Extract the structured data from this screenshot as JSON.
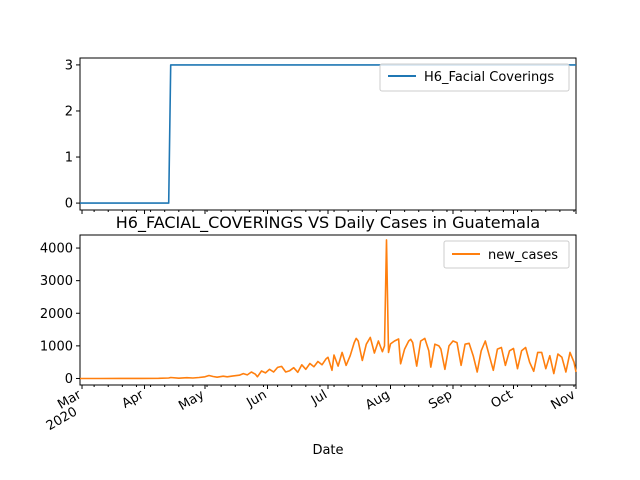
{
  "chart_data": [
    {
      "type": "line",
      "title": "",
      "ylim": [
        -0.15,
        3.15
      ],
      "yticks": [
        0,
        1,
        2,
        3
      ],
      "xlim": [
        "2020-02-29",
        "2020-11-01"
      ],
      "grid": false,
      "legend_position": "top-right",
      "series": [
        {
          "name": "H6_Facial Coverings",
          "color": "#1f77b4",
          "points": [
            [
              "2020-02-29",
              0
            ],
            [
              "2020-04-13",
              0
            ],
            [
              "2020-04-14",
              3
            ],
            [
              "2020-11-01",
              3
            ]
          ]
        }
      ]
    },
    {
      "type": "line",
      "title": "H6_FACIAL_COVERINGS VS Daily Cases in Guatemala",
      "xlabel": "Date",
      "ylim": [
        -200,
        4400
      ],
      "yticks": [
        0,
        1000,
        2000,
        3000,
        4000
      ],
      "xlim": [
        "2020-02-29",
        "2020-11-01"
      ],
      "xtick_labels": [
        {
          "date": "2020-03-01",
          "label": "Mar",
          "sublabel": "2020"
        },
        {
          "date": "2020-04-01",
          "label": "Apr"
        },
        {
          "date": "2020-05-01",
          "label": "May"
        },
        {
          "date": "2020-06-01",
          "label": "Jun"
        },
        {
          "date": "2020-07-01",
          "label": "Jul"
        },
        {
          "date": "2020-08-01",
          "label": "Aug"
        },
        {
          "date": "2020-09-01",
          "label": "Sep"
        },
        {
          "date": "2020-10-01",
          "label": "Oct"
        },
        {
          "date": "2020-11-01",
          "label": "Nov"
        }
      ],
      "grid": false,
      "legend_position": "top-right",
      "series": [
        {
          "name": "new_cases",
          "color": "#ff7f0e",
          "points": [
            [
              "2020-02-29",
              0
            ],
            [
              "2020-03-10",
              0
            ],
            [
              "2020-03-20",
              2
            ],
            [
              "2020-03-31",
              3
            ],
            [
              "2020-04-08",
              5
            ],
            [
              "2020-04-13",
              15
            ],
            [
              "2020-04-14",
              30
            ],
            [
              "2020-04-18",
              10
            ],
            [
              "2020-04-22",
              25
            ],
            [
              "2020-04-25",
              15
            ],
            [
              "2020-04-28",
              30
            ],
            [
              "2020-05-01",
              50
            ],
            [
              "2020-05-03",
              90
            ],
            [
              "2020-05-05",
              60
            ],
            [
              "2020-05-07",
              40
            ],
            [
              "2020-05-10",
              70
            ],
            [
              "2020-05-12",
              50
            ],
            [
              "2020-05-15",
              80
            ],
            [
              "2020-05-18",
              100
            ],
            [
              "2020-05-20",
              150
            ],
            [
              "2020-05-22",
              110
            ],
            [
              "2020-05-24",
              200
            ],
            [
              "2020-05-26",
              130
            ],
            [
              "2020-05-27",
              50
            ],
            [
              "2020-05-29",
              230
            ],
            [
              "2020-05-31",
              170
            ],
            [
              "2020-06-02",
              280
            ],
            [
              "2020-06-04",
              200
            ],
            [
              "2020-06-06",
              340
            ],
            [
              "2020-06-08",
              370
            ],
            [
              "2020-06-10",
              200
            ],
            [
              "2020-06-12",
              240
            ],
            [
              "2020-06-14",
              330
            ],
            [
              "2020-06-16",
              190
            ],
            [
              "2020-06-18",
              420
            ],
            [
              "2020-06-20",
              280
            ],
            [
              "2020-06-22",
              460
            ],
            [
              "2020-06-24",
              360
            ],
            [
              "2020-06-26",
              520
            ],
            [
              "2020-06-28",
              420
            ],
            [
              "2020-06-30",
              600
            ],
            [
              "2020-07-01",
              650
            ],
            [
              "2020-07-03",
              250
            ],
            [
              "2020-07-04",
              720
            ],
            [
              "2020-07-06",
              380
            ],
            [
              "2020-07-08",
              800
            ],
            [
              "2020-07-10",
              400
            ],
            [
              "2020-07-12",
              700
            ],
            [
              "2020-07-14",
              1100
            ],
            [
              "2020-07-15",
              1230
            ],
            [
              "2020-07-16",
              1150
            ],
            [
              "2020-07-18",
              550
            ],
            [
              "2020-07-20",
              1050
            ],
            [
              "2020-07-22",
              1260
            ],
            [
              "2020-07-24",
              780
            ],
            [
              "2020-07-26",
              1150
            ],
            [
              "2020-07-28",
              820
            ],
            [
              "2020-07-29",
              1000
            ],
            [
              "2020-07-30",
              4250
            ],
            [
              "2020-07-31",
              800
            ],
            [
              "2020-08-01",
              1060
            ],
            [
              "2020-08-03",
              1150
            ],
            [
              "2020-08-05",
              1210
            ],
            [
              "2020-08-06",
              450
            ],
            [
              "2020-08-08",
              900
            ],
            [
              "2020-08-10",
              1150
            ],
            [
              "2020-08-11",
              1200
            ],
            [
              "2020-08-12",
              1100
            ],
            [
              "2020-08-14",
              380
            ],
            [
              "2020-08-16",
              1150
            ],
            [
              "2020-08-18",
              1230
            ],
            [
              "2020-08-20",
              850
            ],
            [
              "2020-08-21",
              350
            ],
            [
              "2020-08-23",
              1050
            ],
            [
              "2020-08-25",
              1000
            ],
            [
              "2020-08-26",
              900
            ],
            [
              "2020-08-28",
              280
            ],
            [
              "2020-08-30",
              1000
            ],
            [
              "2020-09-01",
              1150
            ],
            [
              "2020-09-03",
              1100
            ],
            [
              "2020-09-05",
              400
            ],
            [
              "2020-09-07",
              1050
            ],
            [
              "2020-09-09",
              1080
            ],
            [
              "2020-09-11",
              700
            ],
            [
              "2020-09-13",
              200
            ],
            [
              "2020-09-15",
              850
            ],
            [
              "2020-09-17",
              1150
            ],
            [
              "2020-09-19",
              700
            ],
            [
              "2020-09-21",
              250
            ],
            [
              "2020-09-23",
              900
            ],
            [
              "2020-09-25",
              950
            ],
            [
              "2020-09-27",
              400
            ],
            [
              "2020-09-29",
              850
            ],
            [
              "2020-10-01",
              920
            ],
            [
              "2020-10-03",
              300
            ],
            [
              "2020-10-05",
              850
            ],
            [
              "2020-10-07",
              950
            ],
            [
              "2020-10-09",
              500
            ],
            [
              "2020-10-11",
              220
            ],
            [
              "2020-10-13",
              800
            ],
            [
              "2020-10-15",
              800
            ],
            [
              "2020-10-17",
              300
            ],
            [
              "2020-10-19",
              700
            ],
            [
              "2020-10-21",
              150
            ],
            [
              "2020-10-23",
              750
            ],
            [
              "2020-10-25",
              650
            ],
            [
              "2020-10-27",
              200
            ],
            [
              "2020-10-29",
              800
            ],
            [
              "2020-10-31",
              500
            ],
            [
              "2020-11-01",
              200
            ]
          ]
        }
      ]
    }
  ]
}
